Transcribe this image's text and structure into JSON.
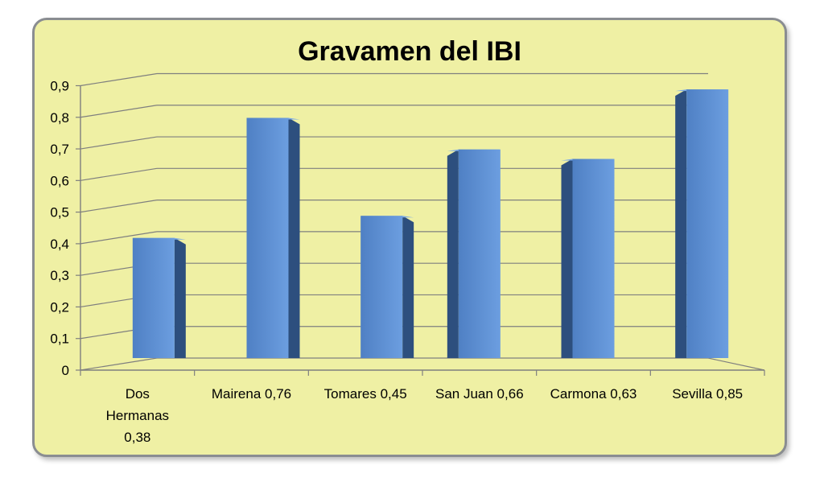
{
  "chart_data": {
    "type": "bar",
    "title": "Gravamen del IBI",
    "categories": [
      "Dos Hermanas 0,38",
      "Mairena 0,76",
      "Tomares 0,45",
      "San Juan 0,66",
      "Carmona 0,63",
      "Sevilla 0,85"
    ],
    "category_lines": [
      [
        "Dos",
        "Hermanas",
        "0,38"
      ],
      [
        "Mairena 0,76"
      ],
      [
        "Tomares 0,45"
      ],
      [
        "San Juan 0,66"
      ],
      [
        "Carmona 0,63"
      ],
      [
        "Sevilla 0,85"
      ]
    ],
    "values": [
      0.38,
      0.76,
      0.45,
      0.66,
      0.63,
      0.85
    ],
    "yticks": [
      "0",
      "0,1",
      "0,2",
      "0,3",
      "0,4",
      "0,5",
      "0,6",
      "0,7",
      "0,8",
      "0,9"
    ],
    "ylim": [
      0,
      0.9
    ],
    "grid": true,
    "legend": "none",
    "style": "3d-column",
    "colors": {
      "panel": "#eff0a4",
      "bar_front": "#5b8fd3",
      "bar_side": "#2d4f7e",
      "bar_top": "#7aa9e6",
      "grid": "#7f7f7f"
    }
  }
}
